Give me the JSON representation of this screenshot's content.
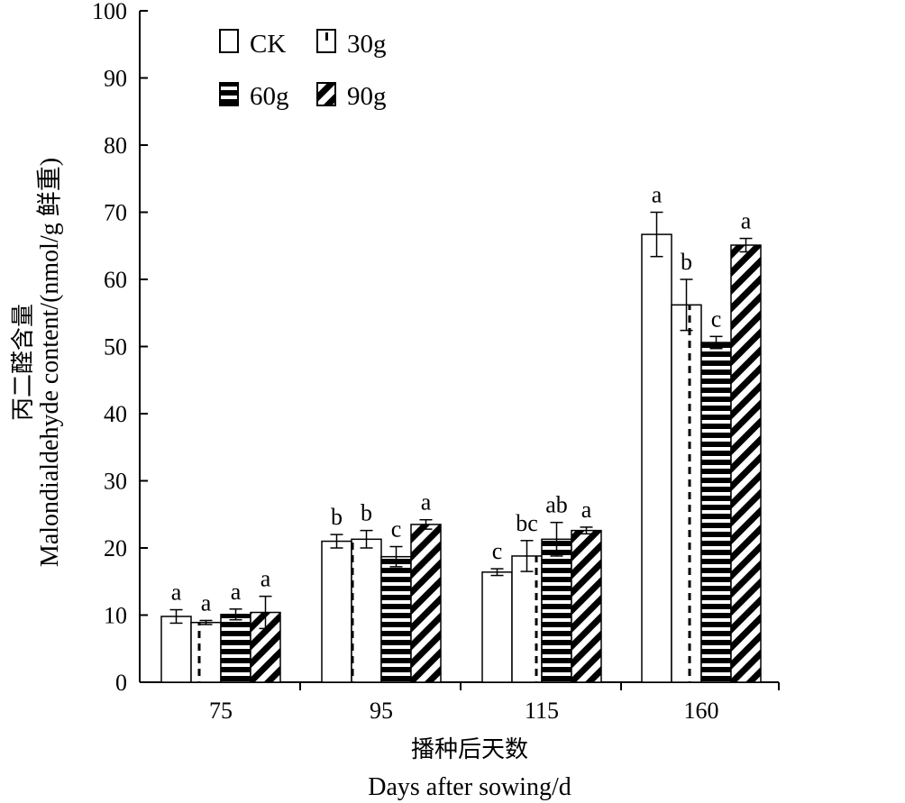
{
  "chart_data": {
    "type": "bar",
    "categories": [
      "75",
      "95",
      "115",
      "160"
    ],
    "series": [
      {
        "name": "CK",
        "pattern": "empty",
        "values": [
          9.8,
          21.0,
          16.4,
          66.7
        ],
        "errors": [
          1.0,
          1.0,
          0.5,
          3.3
        ],
        "labels": [
          "a",
          "b",
          "c",
          "a"
        ]
      },
      {
        "name": "30g",
        "pattern": "dashed-vertical",
        "values": [
          8.9,
          21.3,
          18.8,
          56.2
        ],
        "errors": [
          0.3,
          1.3,
          2.3,
          3.8
        ],
        "labels": [
          "a",
          "b",
          "bc",
          "b"
        ]
      },
      {
        "name": "60g",
        "pattern": "horizontal-stripes",
        "values": [
          10.1,
          18.7,
          21.3,
          50.6
        ],
        "errors": [
          0.8,
          1.5,
          2.5,
          0.9
        ],
        "labels": [
          "a",
          "c",
          "ab",
          "c"
        ]
      },
      {
        "name": "90g",
        "pattern": "diagonal-stripes",
        "values": [
          10.4,
          23.5,
          22.6,
          65.1
        ],
        "errors": [
          2.4,
          0.7,
          0.5,
          1.0
        ],
        "labels": [
          "a",
          "a",
          "a",
          "a"
        ]
      }
    ],
    "ylim": [
      0,
      100
    ],
    "yticks": [
      "0",
      "10",
      "20",
      "30",
      "40",
      "50",
      "60",
      "70",
      "80",
      "90",
      "100"
    ],
    "ylabel_cn": "丙二醛含量",
    "ylabel_en": "Malondialdehyde content/(nmol/g 鲜重)",
    "xlabel_cn": "播种后天数",
    "xlabel_en": "Days after sowing/d",
    "legend_position": "top-left",
    "grid": false
  }
}
